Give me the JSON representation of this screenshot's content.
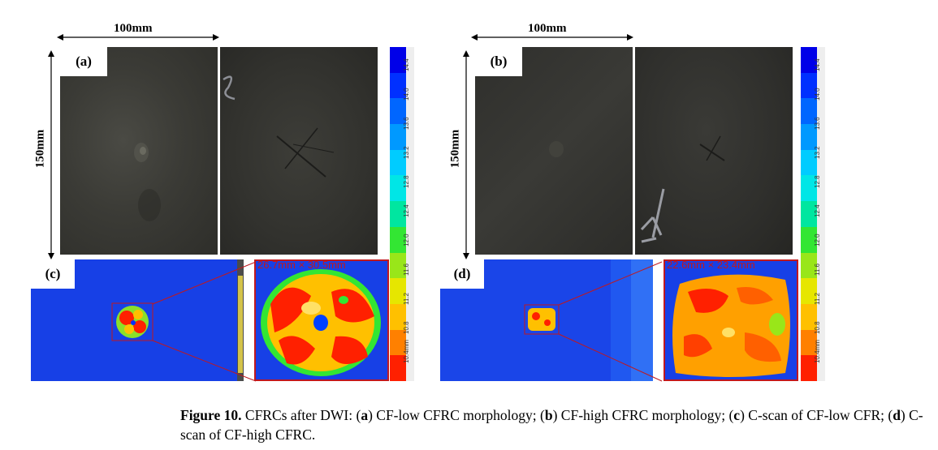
{
  "panels": {
    "a": {
      "label": "(a)",
      "width_label": "100mm",
      "height_label": "150mm"
    },
    "b": {
      "label": "(b)",
      "width_label": "100mm",
      "height_label": "150mm"
    },
    "c": {
      "label": "(c)",
      "measure": "26.7mm × 30.5mm"
    },
    "d": {
      "label": "(d)",
      "measure": "22.6mm × 23.4mm"
    }
  },
  "colorbar": {
    "ticks": [
      "14.4",
      "14.0",
      "13.6",
      "13.2",
      "12.8",
      "12.4",
      "12.0",
      "11.6",
      "11.2",
      "10.8",
      "10.4mm"
    ],
    "colors": [
      "#0000e8",
      "#0030ff",
      "#0066ff",
      "#0099ff",
      "#00ccff",
      "#00e6e6",
      "#00e6a0",
      "#33e633",
      "#99e619",
      "#e6e600",
      "#ffc000",
      "#ff8000",
      "#ff2000"
    ]
  },
  "caption": {
    "fig": "Figure 10.",
    "text_1": " CFRCs after DWI: (",
    "a": "a",
    "text_2": ") CF-low CFRC morphology; (",
    "b": "b",
    "text_3": ") CF-high CFRC morphology; (",
    "c": "c",
    "text_4": ") C-scan of CF-low CFR; (",
    "d": "d",
    "text_5": ") C-scan of CF-high CFRC."
  }
}
